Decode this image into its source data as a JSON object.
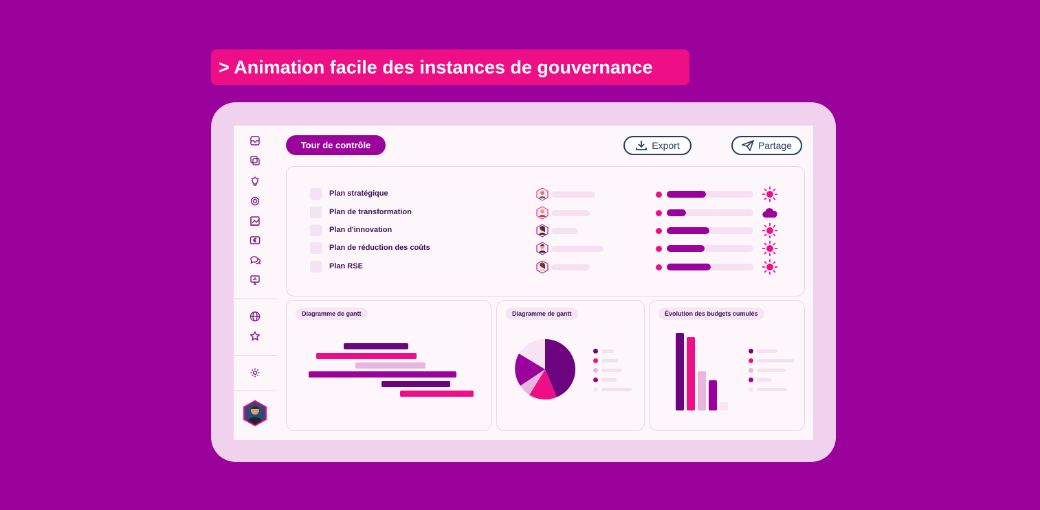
{
  "headline": "> Animation facile des instances de gouvernance",
  "toolbar": {
    "tour_label": "Tour de contrôle",
    "export_label": "Export",
    "share_label": "Partage"
  },
  "sidebar": {
    "icons": [
      "inbox-icon",
      "folders-icon",
      "lightbulb-icon",
      "target-icon",
      "chart-image-icon",
      "currency-icon",
      "chat-icon",
      "presentation-icon",
      "globe-icon",
      "star-icon",
      "gear-icon"
    ]
  },
  "plans": [
    {
      "name": "Plan stratégique",
      "progress": 0.45,
      "weather": "sun-icon"
    },
    {
      "name": "Plan de transformation",
      "progress": 0.22,
      "weather": "cloud-icon"
    },
    {
      "name": "Plan d'innovation",
      "progress": 0.49,
      "weather": "sun-icon"
    },
    {
      "name": "Plan de réduction des coûts",
      "progress": 0.44,
      "weather": "sun-icon"
    },
    {
      "name": "Plan RSE",
      "progress": 0.51,
      "weather": "sun-icon"
    }
  ],
  "cards": {
    "gantt_title": "Diagramme de gantt",
    "pie_title": "Diagramme de gantt",
    "budget_title": "Évolution des budgets cumulés"
  },
  "colors": {
    "background": "#9a029b",
    "accent_pink": "#ee0f86",
    "purple": "#9a029b",
    "dark_purple": "#6b047e",
    "light_pink": "#f0d2ee",
    "navy": "#243b66"
  }
}
